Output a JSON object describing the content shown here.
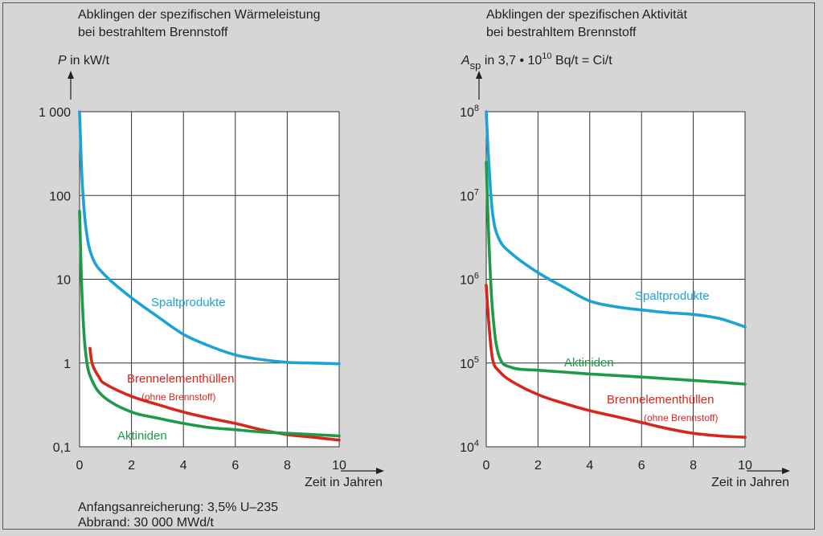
{
  "notes": {
    "line1": "Anfangsanreicherung: 3,5% U–235",
    "line2": "Abbrand: 30 000 MWd/t"
  },
  "colors": {
    "spaltprodukte": "#1ba3d6",
    "aktiniden": "#1e9a4a",
    "huellen": "#d9261c",
    "background": "#d6d6d6",
    "plot": "#ffffff"
  },
  "chart_data": [
    {
      "type": "line",
      "title": "Abklingen der spezifischen Wärmeleistung\nbei bestrahltem Brennstoff",
      "ylabel": "P in kW/t",
      "xlabel": "Zeit in Jahren",
      "yscale": "log",
      "ylim": [
        0.1,
        1000
      ],
      "xlim": [
        0,
        10
      ],
      "yticks": [
        "0,1",
        "1",
        "10",
        "100",
        "1 000"
      ],
      "xticks": [
        "0",
        "2",
        "4",
        "6",
        "8",
        "10"
      ],
      "grid": true,
      "series": [
        {
          "name": "Spaltprodukte",
          "color": "spaltprodukte",
          "points": [
            [
              0,
              1000
            ],
            [
              0.1,
              150
            ],
            [
              0.25,
              40
            ],
            [
              0.5,
              18
            ],
            [
              1,
              11
            ],
            [
              2,
              6
            ],
            [
              3,
              3.6
            ],
            [
              4,
              2.2
            ],
            [
              5,
              1.6
            ],
            [
              6,
              1.25
            ],
            [
              7,
              1.1
            ],
            [
              8,
              1.02
            ],
            [
              9,
              1.0
            ],
            [
              10,
              0.98
            ]
          ]
        },
        {
          "name": "Brennelementhüllen\n(ohne Brennstoff)",
          "color": "huellen",
          "points": [
            [
              0.4,
              1.5
            ],
            [
              0.5,
              0.95
            ],
            [
              0.75,
              0.68
            ],
            [
              1,
              0.56
            ],
            [
              2,
              0.4
            ],
            [
              3,
              0.32
            ],
            [
              4,
              0.26
            ],
            [
              5,
              0.22
            ],
            [
              6,
              0.19
            ],
            [
              7,
              0.16
            ],
            [
              8,
              0.14
            ],
            [
              9,
              0.13
            ],
            [
              10,
              0.12
            ]
          ]
        },
        {
          "name": "Aktiniden",
          "color": "aktiniden",
          "points": [
            [
              0,
              65
            ],
            [
              0.1,
              6
            ],
            [
              0.25,
              1.2
            ],
            [
              0.5,
              0.6
            ],
            [
              1,
              0.38
            ],
            [
              2,
              0.26
            ],
            [
              3,
              0.22
            ],
            [
              4,
              0.19
            ],
            [
              5,
              0.17
            ],
            [
              6,
              0.16
            ],
            [
              7,
              0.15
            ],
            [
              8,
              0.145
            ],
            [
              9,
              0.14
            ],
            [
              10,
              0.135
            ]
          ]
        }
      ]
    },
    {
      "type": "line",
      "title": "Abklingen der spezifischen Aktivität\nbei bestrahltem Brennstoff",
      "ylabel": "A_sp in 3,7 • 10^10 Bq/t = Ci/t",
      "xlabel": "Zeit in Jahren",
      "yscale": "log",
      "ylim": [
        10000,
        100000000
      ],
      "xlim": [
        0,
        10
      ],
      "yticks": [
        "10^4",
        "10^5",
        "10^6",
        "10^7",
        "10^8"
      ],
      "xticks": [
        "0",
        "2",
        "4",
        "6",
        "8",
        "10"
      ],
      "grid": true,
      "series": [
        {
          "name": "Spaltprodukte",
          "color": "spaltprodukte",
          "points": [
            [
              0,
              100000000
            ],
            [
              0.1,
              25000000
            ],
            [
              0.25,
              6000000
            ],
            [
              0.5,
              3000000
            ],
            [
              1,
              2000000
            ],
            [
              2,
              1200000
            ],
            [
              3,
              800000
            ],
            [
              4,
              550000
            ],
            [
              5,
              470000
            ],
            [
              6,
              430000
            ],
            [
              7,
              400000
            ],
            [
              8,
              380000
            ],
            [
              9,
              340000
            ],
            [
              10,
              270000
            ]
          ]
        },
        {
          "name": "Aktiniden",
          "color": "aktiniden",
          "points": [
            [
              0,
              25000000
            ],
            [
              0.1,
              3000000
            ],
            [
              0.25,
              400000
            ],
            [
              0.5,
              120000
            ],
            [
              1,
              88000
            ],
            [
              2,
              82000
            ],
            [
              3,
              78000
            ],
            [
              4,
              74000
            ],
            [
              5,
              71000
            ],
            [
              6,
              68000
            ],
            [
              7,
              65000
            ],
            [
              8,
              62000
            ],
            [
              9,
              59000
            ],
            [
              10,
              56000
            ]
          ]
        },
        {
          "name": "Brennelementhüllen\n(ohne Brennstoff)",
          "color": "huellen",
          "points": [
            [
              0,
              850000
            ],
            [
              0.1,
              300000
            ],
            [
              0.25,
              110000
            ],
            [
              0.5,
              80000
            ],
            [
              1,
              60000
            ],
            [
              2,
              42000
            ],
            [
              3,
              33000
            ],
            [
              4,
              27000
            ],
            [
              5,
              23000
            ],
            [
              6,
              19500
            ],
            [
              7,
              16500
            ],
            [
              8,
              14500
            ],
            [
              9,
              13500
            ],
            [
              10,
              13000
            ]
          ]
        }
      ]
    }
  ]
}
